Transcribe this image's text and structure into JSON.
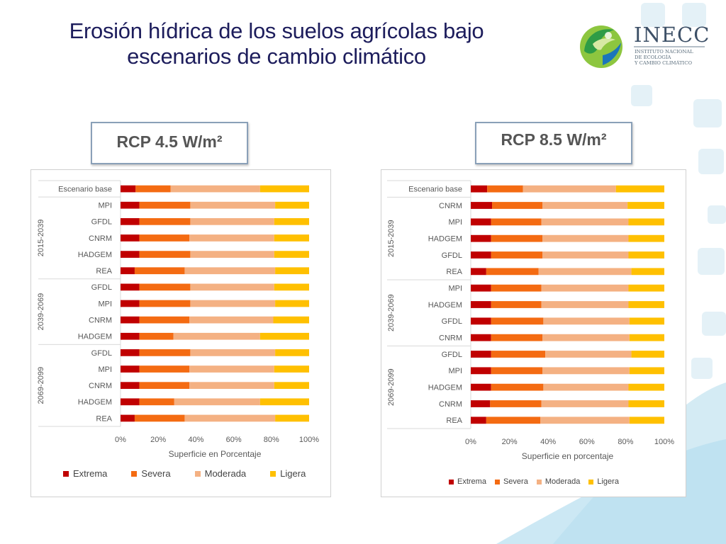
{
  "slide": {
    "title_line1": "Erosión hídrica de los suelos agrícolas bajo",
    "title_line2": "escenarios de cambio climático"
  },
  "logo": {
    "name": "INECC",
    "subtitle_line1": "INSTITUTO NACIONAL",
    "subtitle_line2": "DE ECOLOGÍA",
    "subtitle_line3": "Y CAMBIO CLIMÁTICO"
  },
  "labels": {
    "left_box": "RCP 4.5 W/m²",
    "right_box": "RCP 8.5 W/m²"
  },
  "colors": {
    "Extrema": "#c00000",
    "Severa": "#f46b12",
    "Moderada": "#f4b183",
    "Ligera": "#ffc000"
  },
  "chart_data": [
    {
      "type": "bar",
      "orientation": "horizontal",
      "stacked": "percent",
      "xlabel": "Superficie en Porcentaje",
      "x_ticks": [
        "0%",
        "20%",
        "40%",
        "60%",
        "80%",
        "100%"
      ],
      "xlim": [
        0,
        100
      ],
      "grid": false,
      "legend_position": "bottom",
      "groups": [
        {
          "label": "",
          "categories": [
            "Escenario base"
          ]
        },
        {
          "label": "2015-2039",
          "categories": [
            "MPI",
            "GFDL",
            "CNRM",
            "HADGEM",
            "REA"
          ]
        },
        {
          "label": "2039-2069",
          "categories": [
            "GFDL",
            "MPI",
            "CNRM",
            "HADGEM"
          ]
        },
        {
          "label": "2069-2099",
          "categories": [
            "GFDL",
            "MPI",
            "CNRM",
            "HADGEM",
            "REA"
          ]
        }
      ],
      "series": [
        {
          "name": "Extrema",
          "values": [
            8,
            10,
            10,
            10,
            10,
            7.5,
            10,
            10,
            10,
            10,
            10,
            10,
            10,
            10,
            7.5
          ]
        },
        {
          "name": "Severa",
          "values": [
            18.5,
            27,
            27,
            26.5,
            27,
            26.5,
            27,
            27,
            26.5,
            18,
            27,
            26.5,
            26.5,
            18.5,
            26.5
          ]
        },
        {
          "name": "Moderada",
          "values": [
            47.5,
            45,
            44.5,
            45,
            44.5,
            48,
            44.5,
            45,
            44.5,
            46,
            45,
            45,
            45,
            45.5,
            48
          ]
        },
        {
          "name": "Ligera",
          "values": [
            26,
            18,
            18.5,
            18.5,
            18.5,
            18,
            18.5,
            18,
            19,
            26,
            18,
            18.5,
            18.5,
            26,
            18
          ]
        }
      ]
    },
    {
      "type": "bar",
      "orientation": "horizontal",
      "stacked": "percent",
      "xlabel": "Superficie en porcentaje",
      "x_ticks": [
        "0%",
        "20%",
        "40%",
        "60%",
        "80%",
        "100%"
      ],
      "xlim": [
        0,
        100
      ],
      "grid": false,
      "legend_position": "bottom",
      "groups": [
        {
          "label": "",
          "categories": [
            "Escenario base"
          ]
        },
        {
          "label": "2015-2039",
          "categories": [
            "CNRM",
            "MPI",
            "HADGEM",
            "GFDL",
            "REA"
          ]
        },
        {
          "label": "2039-2069",
          "categories": [
            "MPI",
            "HADGEM",
            "GFDL",
            "CNRM"
          ]
        },
        {
          "label": "2069-2099",
          "categories": [
            "GFDL",
            "MPI",
            "HADGEM",
            "CNRM",
            "REA"
          ]
        }
      ],
      "series": [
        {
          "name": "Extrema",
          "values": [
            8.5,
            11,
            10.5,
            10.5,
            10.5,
            8,
            10.5,
            10.5,
            10.5,
            10.5,
            10.5,
            10.5,
            10.5,
            10,
            8
          ]
        },
        {
          "name": "Severa",
          "values": [
            18.5,
            26,
            26,
            26.5,
            26.5,
            27,
            26,
            26,
            27,
            26.5,
            28,
            26.5,
            27,
            26.5,
            28
          ]
        },
        {
          "name": "Moderada",
          "values": [
            48,
            44,
            45,
            44.5,
            44.5,
            48,
            45,
            45,
            44.5,
            45,
            44.5,
            45,
            44,
            45,
            46
          ]
        },
        {
          "name": "Ligera",
          "values": [
            25,
            19,
            18.5,
            18.5,
            18.5,
            17,
            18.5,
            18.5,
            18,
            18,
            17,
            18,
            18.5,
            18.5,
            18
          ]
        }
      ]
    }
  ]
}
